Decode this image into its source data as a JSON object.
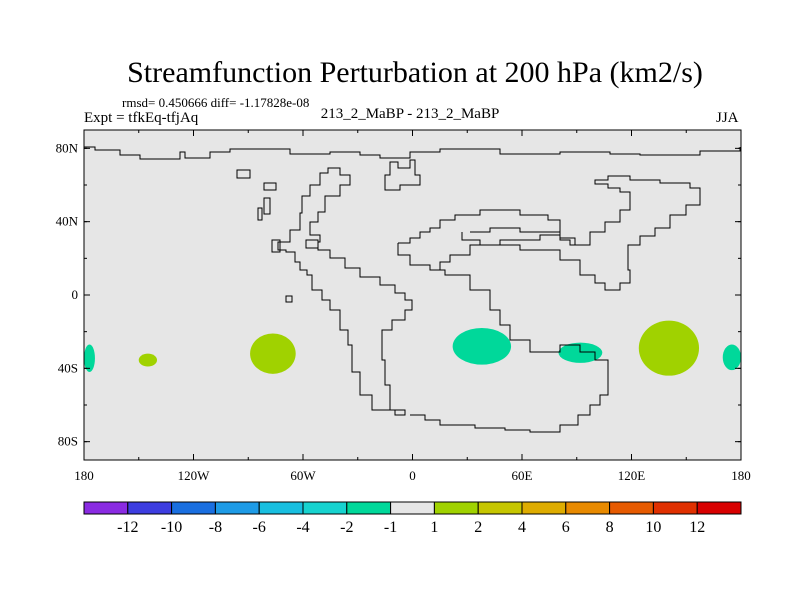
{
  "header": {
    "title": "Streamfunction Perturbation at 200 hPa (km2/s)",
    "rmsd_line": "rmsd= 0.450666 diff= -1.17828e-08",
    "expt_line": "Expt = tfkEq-tfjAq",
    "center_line": "213_2_MaBP - 213_2_MaBP",
    "season": "JJA"
  },
  "chart_data": {
    "type": "heatmap",
    "title": "Streamfunction Perturbation at 200 hPa (km2/s)",
    "xlim": [
      -180,
      180
    ],
    "ylim": [
      -90,
      90
    ],
    "x_ticks": [
      {
        "value": -180,
        "label": "180"
      },
      {
        "value": -120,
        "label": "120W"
      },
      {
        "value": -60,
        "label": "60W"
      },
      {
        "value": 0,
        "label": "0"
      },
      {
        "value": 60,
        "label": "60E"
      },
      {
        "value": 120,
        "label": "120E"
      },
      {
        "value": 180,
        "label": "180"
      }
    ],
    "y_ticks": [
      {
        "value": 80,
        "label": "80N"
      },
      {
        "value": 40,
        "label": "40N"
      },
      {
        "value": 0,
        "label": "0"
      },
      {
        "value": -40,
        "label": "40S"
      },
      {
        "value": -80,
        "label": "80S"
      }
    ],
    "background_level_color": "#e6e6e6",
    "anomaly_regions": [
      {
        "sign": "negative",
        "range": "-2 to -1",
        "color": "#00d89a",
        "lon": [
          -180,
          -174
        ],
        "lat": [
          -42,
          -27
        ]
      },
      {
        "sign": "positive",
        "range": "1 to 2",
        "color": "#a0d200",
        "lon": [
          -150,
          -140
        ],
        "lat": [
          -39,
          -32
        ]
      },
      {
        "sign": "positive",
        "range": "1 to 2",
        "color": "#a0d200",
        "lon": [
          -89,
          -64
        ],
        "lat": [
          -43,
          -21
        ]
      },
      {
        "sign": "negative",
        "range": "-2 to -1",
        "color": "#00d89a",
        "lon": [
          22,
          54
        ],
        "lat": [
          -38,
          -18
        ]
      },
      {
        "sign": "negative",
        "range": "-2 to -1",
        "color": "#00d89a",
        "lon": [
          80,
          104
        ],
        "lat": [
          -37,
          -26
        ]
      },
      {
        "sign": "positive",
        "range": "1 to 2",
        "color": "#a0d200",
        "lon": [
          124,
          157
        ],
        "lat": [
          -44,
          -14
        ]
      },
      {
        "sign": "negative",
        "range": "-2 to -1",
        "color": "#00d89a",
        "lon": [
          170,
          180
        ],
        "lat": [
          -41,
          -27
        ]
      }
    ],
    "colorbar": {
      "labels": [
        "-12",
        "-10",
        "-8",
        "-6",
        "-4",
        "-2",
        "-1",
        "1",
        "2",
        "4",
        "6",
        "8",
        "10",
        "12"
      ],
      "colors": [
        "#8a2be2",
        "#3d3de0",
        "#1a6fe0",
        "#1e9be6",
        "#18bfe0",
        "#17d3cf",
        "#00d89a",
        "#e6e6e6",
        "#a0d200",
        "#c6c600",
        "#deac00",
        "#e88a00",
        "#e65a00",
        "#e03000",
        "#d80000"
      ]
    }
  }
}
